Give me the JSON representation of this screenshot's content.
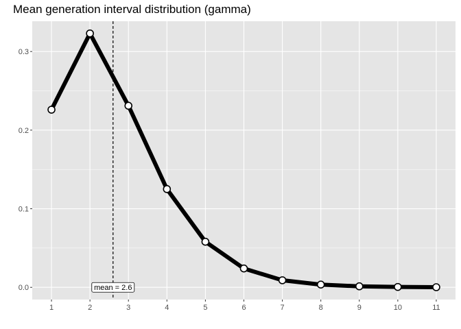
{
  "chart_data": {
    "type": "line",
    "title": "Mean generation interval distribution (gamma)",
    "xlabel": "",
    "ylabel": "",
    "x": [
      1,
      2,
      3,
      4,
      5,
      6,
      7,
      8,
      9,
      10,
      11
    ],
    "series": [
      {
        "values": [
          0.226,
          0.323,
          0.231,
          0.125,
          0.058,
          0.024,
          0.009,
          0.0035,
          0.0013,
          0.0005,
          0.0002
        ]
      }
    ],
    "xlim": [
      0.5,
      11.5
    ],
    "ylim": [
      -0.0155,
      0.3385
    ],
    "x_ticks": [
      "1",
      "2",
      "3",
      "4",
      "5",
      "6",
      "7",
      "8",
      "9",
      "10",
      "11"
    ],
    "y_ticks": [
      {
        "value": 0.0,
        "label": "0.0"
      },
      {
        "value": 0.1,
        "label": "0.1"
      },
      {
        "value": 0.2,
        "label": "0.2"
      },
      {
        "value": 0.3,
        "label": "0.3"
      }
    ],
    "vline": {
      "x": 2.6,
      "style": "dashed",
      "label": "mean = 2.6"
    },
    "grid": true,
    "colors": {
      "panel": "#e5e5e5",
      "grid": "#ffffff",
      "line": "#000000",
      "point_fill": "#ffffff"
    }
  }
}
